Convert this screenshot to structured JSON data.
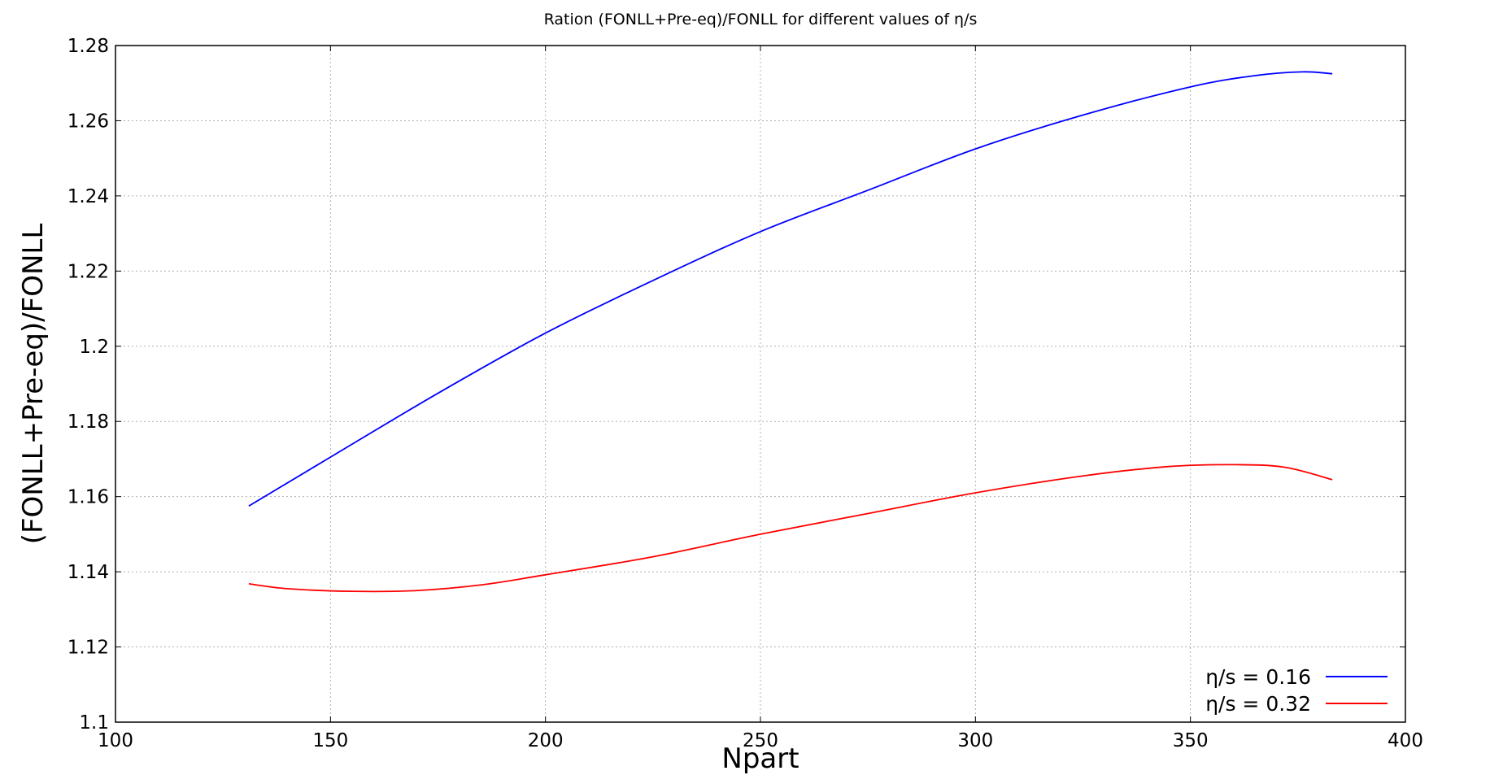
{
  "chart_data": {
    "type": "line",
    "title": "Ration (FONLL+Pre-eq)/FONLL for different values of η/s",
    "xlabel": "Npart",
    "ylabel": "(FONLL+Pre-eq)/FONLL",
    "xlim": [
      100,
      400
    ],
    "ylim": [
      1.1,
      1.28
    ],
    "xticks": [
      100,
      150,
      200,
      250,
      300,
      350,
      400
    ],
    "xtick_labels": [
      "100",
      "150",
      "200",
      "250",
      "300",
      "350",
      "400"
    ],
    "yticks": [
      1.1,
      1.12,
      1.14,
      1.16,
      1.18,
      1.2,
      1.22,
      1.24,
      1.26,
      1.28
    ],
    "ytick_labels": [
      "1.1",
      "1.12",
      "1.14",
      "1.16",
      "1.18",
      "1.2",
      "1.22",
      "1.24",
      "1.26",
      "1.28"
    ],
    "grid": true,
    "legend_position": "bottom-right",
    "series": [
      {
        "name": "η/s = 0.16",
        "color": "#0000ff",
        "x": [
          131,
          150,
          175,
          200,
          225,
          250,
          275,
          300,
          325,
          350,
          365,
          376,
          383
        ],
        "y": [
          1.1575,
          1.1705,
          1.1875,
          1.2035,
          1.2175,
          1.2305,
          1.2415,
          1.2525,
          1.2615,
          1.269,
          1.272,
          1.273,
          1.2725
        ]
      },
      {
        "name": "η/s = 0.32",
        "color": "#ff0000",
        "x": [
          131,
          140,
          155,
          170,
          185,
          200,
          225,
          250,
          275,
          300,
          325,
          345,
          360,
          372,
          383
        ],
        "y": [
          1.1368,
          1.1355,
          1.1348,
          1.135,
          1.1365,
          1.1392,
          1.144,
          1.15,
          1.1555,
          1.161,
          1.1655,
          1.168,
          1.1685,
          1.1678,
          1.1645
        ]
      }
    ]
  }
}
